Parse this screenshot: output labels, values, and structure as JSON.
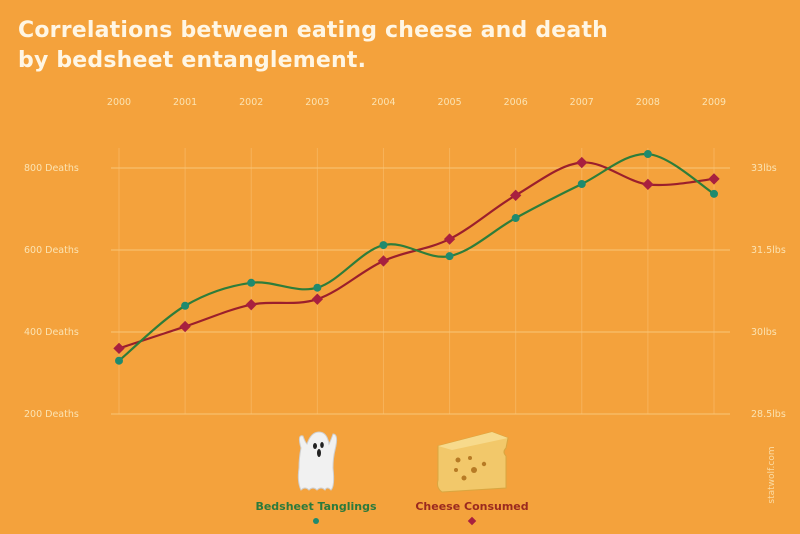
{
  "title_line1": "Correlations between eating cheese and death",
  "title_line2": "by bedsheet entanglement.",
  "watermark": "statwolf.com",
  "chart_data": {
    "type": "line",
    "title": "Correlations between eating cheese and death by bedsheet entanglement.",
    "x": [
      "2000",
      "2001",
      "2002",
      "2003",
      "2004",
      "2005",
      "2006",
      "2007",
      "2008",
      "2009"
    ],
    "left_axis": {
      "ticks": [
        800,
        600,
        400,
        200
      ],
      "tick_labels": [
        "800 Deaths",
        "600 Deaths",
        "400 Deaths",
        "200 Deaths"
      ],
      "range": [
        200,
        800
      ]
    },
    "right_axis": {
      "ticks": [
        33,
        31.5,
        30,
        28.5
      ],
      "tick_labels": [
        "33lbs",
        "31.5lbs",
        "30lbs",
        "28.5lbs"
      ],
      "range": [
        28.5,
        33
      ]
    },
    "grid": true,
    "legend_position": "bottom-center",
    "series": [
      {
        "name": "Bedsheet Tanglings",
        "axis": "left",
        "color": "#1f8a6e",
        "marker": "circle",
        "values": [
          330,
          464,
          520,
          508,
          612,
          585,
          678,
          761,
          834,
          737
        ]
      },
      {
        "name": "Cheese Consumed",
        "axis": "right",
        "color": "#a8203f",
        "marker": "diamond",
        "values": [
          29.7,
          30.1,
          30.5,
          30.6,
          31.3,
          31.7,
          32.5,
          33.1,
          32.7,
          32.8
        ]
      }
    ]
  },
  "legend": [
    {
      "label": "Bedsheet Tanglings",
      "icon": "ghost-icon",
      "color": "#2b7a3c"
    },
    {
      "label": "Cheese Consumed",
      "icon": "cheese-icon",
      "color": "#9b2a1f"
    }
  ]
}
